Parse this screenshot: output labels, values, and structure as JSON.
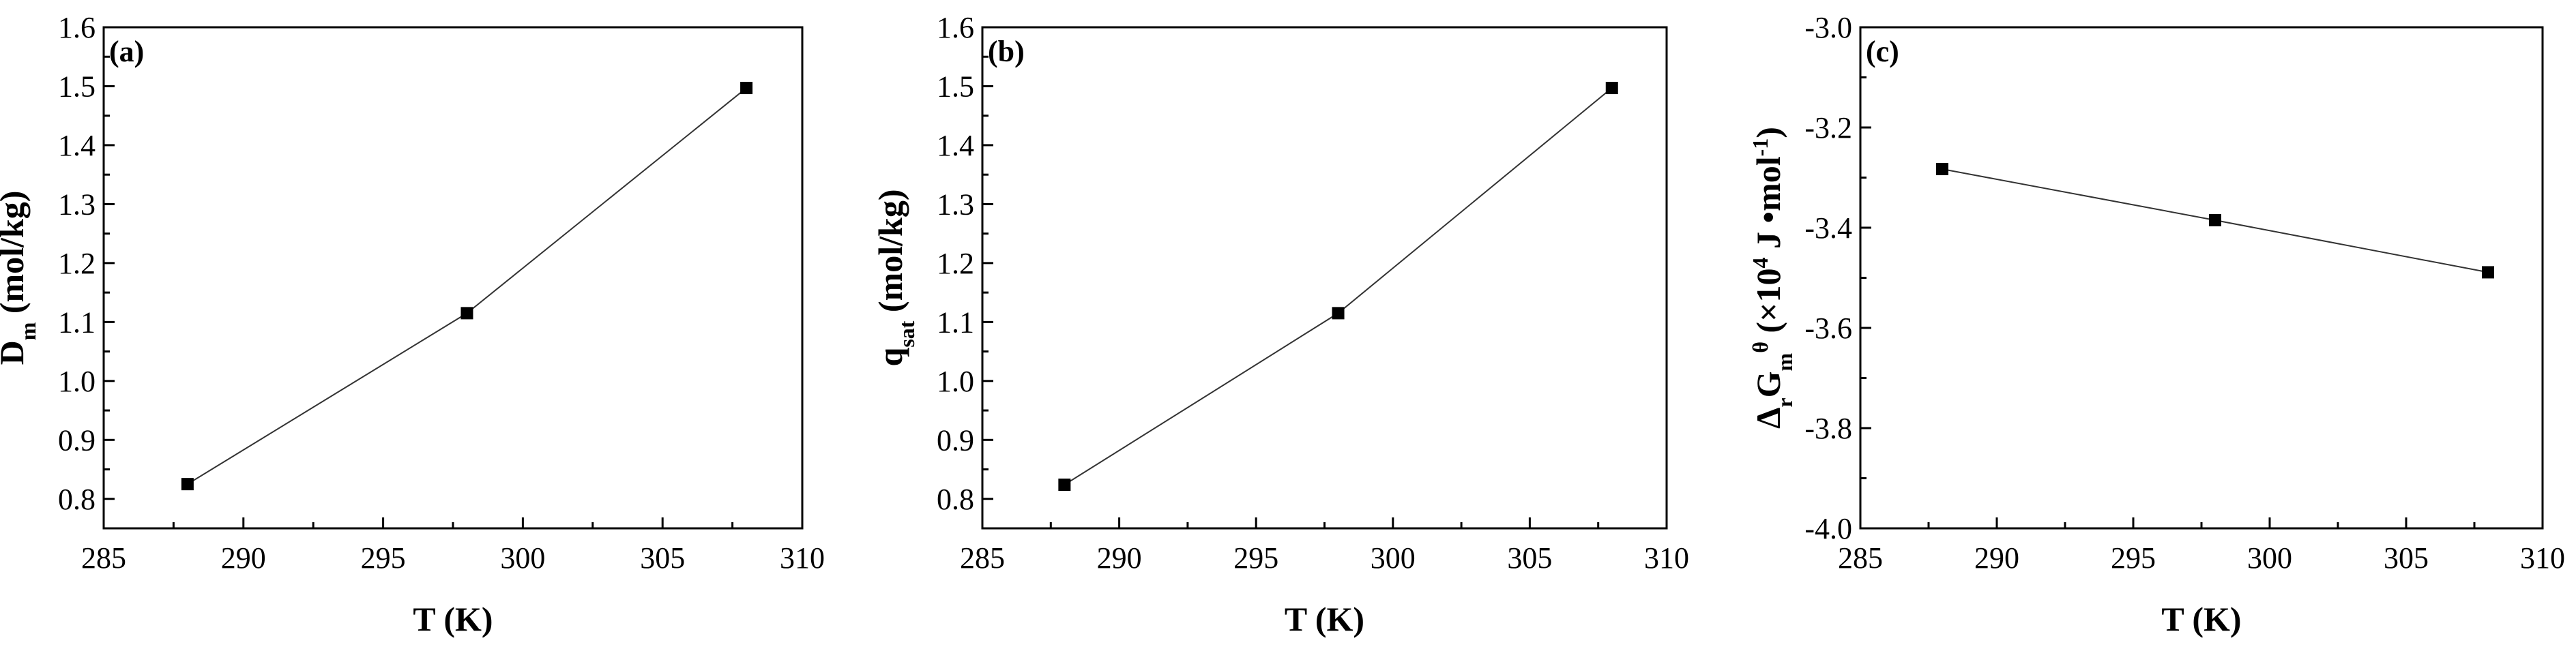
{
  "chart_data": [
    {
      "type": "line",
      "panel_label": "(a)",
      "xlabel": "T (K)",
      "ylabel": {
        "main": "D",
        "sub": "m",
        "rest": " (mol/kg)"
      },
      "xlim": [
        285,
        310
      ],
      "ylim": [
        0.75,
        1.6
      ],
      "xticks": [
        285,
        290,
        295,
        300,
        305,
        310
      ],
      "yticks": [
        0.8,
        0.9,
        1.0,
        1.1,
        1.2,
        1.3,
        1.4,
        1.5,
        1.6
      ],
      "ytick_labels": [
        "0.8",
        "0.9",
        "1.0",
        "1.1",
        "1.2",
        "1.3",
        "1.4",
        "1.5",
        "1.6"
      ],
      "series": [
        {
          "x": [
            288,
            298,
            308
          ],
          "y": [
            0.825,
            1.115,
            1.497
          ]
        }
      ]
    },
    {
      "type": "line",
      "panel_label": "(b)",
      "xlabel": "T (K)",
      "ylabel": {
        "main": "q",
        "sub": "sat",
        "rest": " (mol/kg)"
      },
      "xlim": [
        285,
        310
      ],
      "ylim": [
        0.75,
        1.6
      ],
      "xticks": [
        285,
        290,
        295,
        300,
        305,
        310
      ],
      "yticks": [
        0.8,
        0.9,
        1.0,
        1.1,
        1.2,
        1.3,
        1.4,
        1.5,
        1.6
      ],
      "ytick_labels": [
        "0.8",
        "0.9",
        "1.0",
        "1.1",
        "1.2",
        "1.3",
        "1.4",
        "1.5",
        "1.6"
      ],
      "series": [
        {
          "x": [
            288,
            298,
            308
          ],
          "y": [
            0.824,
            1.115,
            1.497
          ]
        }
      ]
    },
    {
      "type": "line",
      "panel_label": "(c)",
      "xlabel": "T (K)",
      "ylabel": {
        "main": "Δ",
        "sub": "r",
        "main2": "G",
        "sub2": "m",
        "sup": "θ",
        "rest": " (×10",
        "rest_sup": "4",
        "rest2": " J •mol",
        "rest2_sup": "-1",
        "rest3": ")"
      },
      "xlim": [
        285,
        310
      ],
      "ylim": [
        -4.0,
        -3.0
      ],
      "xticks": [
        285,
        290,
        295,
        300,
        305,
        310
      ],
      "yticks": [
        -4.0,
        -3.8,
        -3.6,
        -3.4,
        -3.2,
        -3.0
      ],
      "ytick_labels": [
        "-4.0",
        "-3.8",
        "-3.6",
        "-3.4",
        "-3.2",
        "-3.0"
      ],
      "series": [
        {
          "x": [
            288,
            298,
            308
          ],
          "y": [
            -3.283,
            -3.385,
            -3.489
          ]
        }
      ]
    }
  ]
}
